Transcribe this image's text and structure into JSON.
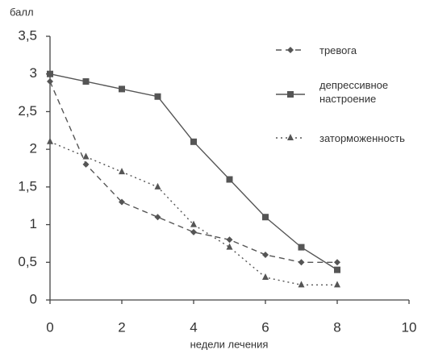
{
  "chart_data": {
    "type": "line",
    "y_label": "балл",
    "x_label": "недели лечения",
    "x": [
      0,
      1,
      2,
      3,
      4,
      5,
      6,
      7,
      8
    ],
    "series": [
      {
        "name": "тревога",
        "color": "#555555",
        "marker": "diamond",
        "dash": "dashed",
        "values": [
          2.9,
          1.8,
          1.3,
          1.1,
          0.9,
          0.8,
          0.6,
          0.5,
          0.5
        ]
      },
      {
        "name": "депрессивное настроение",
        "color": "#555555",
        "marker": "square",
        "dash": "solid",
        "values": [
          3.0,
          2.9,
          2.8,
          2.7,
          2.1,
          1.6,
          1.1,
          0.7,
          0.4
        ]
      },
      {
        "name": "заторможенность",
        "color": "#555555",
        "marker": "triangle",
        "dash": "dotted",
        "values": [
          2.1,
          1.9,
          1.7,
          1.5,
          1.0,
          0.7,
          0.3,
          0.2,
          0.2
        ]
      }
    ],
    "xlim": [
      0,
      10
    ],
    "xticks": [
      0,
      2,
      4,
      6,
      8,
      10
    ],
    "ylim": [
      0,
      3.5
    ],
    "yticks": [
      0,
      {
        "value": 0.5,
        "label": "0,5"
      },
      1,
      {
        "value": 1.5,
        "label": "1,5"
      },
      2,
      {
        "value": 2.5,
        "label": "2,5"
      },
      3,
      {
        "value": 3.5,
        "label": "3,5"
      }
    ],
    "grid": false,
    "legend": "right"
  }
}
